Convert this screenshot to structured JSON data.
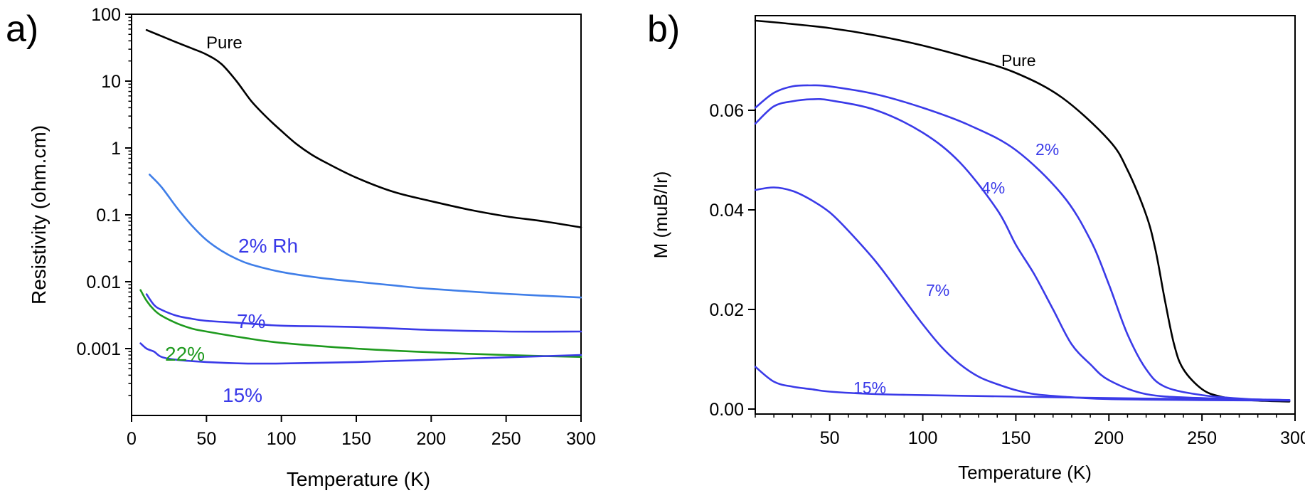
{
  "colors": {
    "black": "#000000",
    "blue": "#3a3ae8",
    "light_blue": "#3f7ee8",
    "green": "#1e9a1e"
  },
  "chart_data": [
    {
      "panel": "a)",
      "type": "line",
      "title": "",
      "xlabel": "Temperature (K)",
      "ylabel": "Resistivity (ohm.cm)",
      "xlim": [
        0,
        300
      ],
      "ylim": [
        0.0001,
        100
      ],
      "yscale": "log",
      "grid": false,
      "xticks": [
        0,
        50,
        100,
        150,
        200,
        250,
        300
      ],
      "xtick_labels": [
        "0",
        "50",
        "100",
        "150",
        "200",
        "250",
        "300"
      ],
      "yticks": [
        100,
        10,
        1,
        0.1,
        0.01,
        0.001
      ],
      "ytick_labels": [
        "100",
        "10",
        "1",
        "0.1",
        "0.01",
        "0.001"
      ],
      "series": [
        {
          "name": "Pure",
          "color": "#000000",
          "x": [
            10,
            20,
            30,
            40,
            50,
            60,
            70,
            80,
            90,
            100,
            110,
            120,
            130,
            150,
            175,
            200,
            225,
            250,
            275,
            300
          ],
          "y": [
            58,
            47,
            38,
            31,
            25,
            18,
            10,
            5,
            2.9,
            1.8,
            1.15,
            0.8,
            0.6,
            0.36,
            0.22,
            0.16,
            0.12,
            0.095,
            0.08,
            0.065
          ]
        },
        {
          "name": "2% Rh",
          "color": "#3f7ee8",
          "x": [
            12,
            20,
            30,
            40,
            50,
            60,
            70,
            80,
            100,
            125,
            150,
            175,
            200,
            250,
            300
          ],
          "y": [
            0.4,
            0.26,
            0.13,
            0.07,
            0.042,
            0.029,
            0.022,
            0.018,
            0.014,
            0.0115,
            0.01,
            0.0088,
            0.0078,
            0.0066,
            0.0058
          ]
        },
        {
          "name": "7%",
          "color": "#3a3ae8",
          "x": [
            10,
            15,
            20,
            30,
            40,
            50,
            75,
            100,
            150,
            200,
            250,
            300
          ],
          "y": [
            0.0065,
            0.0045,
            0.0038,
            0.0031,
            0.0028,
            0.0026,
            0.0024,
            0.0022,
            0.0021,
            0.0019,
            0.0018,
            0.0018
          ]
        },
        {
          "name": "22%",
          "color": "#1e9a1e",
          "x": [
            6,
            10,
            15,
            20,
            30,
            40,
            50,
            75,
            100,
            150,
            200,
            250,
            300
          ],
          "y": [
            0.0075,
            0.0052,
            0.0038,
            0.0031,
            0.0024,
            0.002,
            0.0018,
            0.00145,
            0.00122,
            0.001,
            0.00088,
            0.0008,
            0.00075
          ]
        },
        {
          "name": "15%",
          "color": "#3a3ae8",
          "x": [
            6,
            10,
            15,
            20,
            30,
            50,
            75,
            100,
            150,
            200,
            250,
            300
          ],
          "y": [
            0.0012,
            0.001,
            0.0009,
            0.00075,
            0.00068,
            0.00063,
            0.0006,
            0.0006,
            0.00063,
            0.00068,
            0.00074,
            0.0008
          ]
        }
      ],
      "annotations": [
        "Pure",
        "2% Rh",
        "7%",
        "22%",
        "15%"
      ]
    },
    {
      "panel": "b)",
      "type": "line",
      "title": "",
      "xlabel": "Temperature (K)",
      "ylabel": "M (muB/Ir)",
      "xlim": [
        10,
        300
      ],
      "ylim": [
        -0.001,
        0.079
      ],
      "yscale": "linear",
      "grid": false,
      "xticks": [
        50,
        100,
        150,
        200,
        250,
        300
      ],
      "xtick_labels": [
        "50",
        "100",
        "150",
        "200",
        "250",
        "300"
      ],
      "yticks": [
        0,
        0.02,
        0.04,
        0.06
      ],
      "ytick_labels": [
        "0.00",
        "0.02",
        "0.04",
        "0.06"
      ],
      "series": [
        {
          "name": "Pure",
          "color": "#000000",
          "x": [
            10,
            25,
            50,
            75,
            100,
            125,
            150,
            175,
            200,
            210,
            220,
            225,
            230,
            235,
            240,
            250,
            260,
            275,
            297
          ],
          "y": [
            0.078,
            0.0775,
            0.0765,
            0.075,
            0.073,
            0.0705,
            0.0675,
            0.0625,
            0.054,
            0.048,
            0.039,
            0.032,
            0.022,
            0.013,
            0.008,
            0.004,
            0.0025,
            0.0018,
            0.0015
          ]
        },
        {
          "name": "2%",
          "color": "#3a3ae8",
          "x": [
            10,
            20,
            30,
            40,
            50,
            75,
            100,
            125,
            150,
            175,
            190,
            200,
            210,
            220,
            230,
            250,
            275,
            297
          ],
          "y": [
            0.0605,
            0.0635,
            0.0648,
            0.065,
            0.0648,
            0.0632,
            0.0605,
            0.057,
            0.052,
            0.043,
            0.034,
            0.025,
            0.015,
            0.008,
            0.0045,
            0.0028,
            0.002,
            0.0018
          ]
        },
        {
          "name": "4%",
          "color": "#3a3ae8",
          "x": [
            10,
            20,
            30,
            40,
            50,
            75,
            100,
            120,
            140,
            150,
            160,
            170,
            180,
            190,
            200,
            220,
            250,
            297
          ],
          "y": [
            0.0573,
            0.0608,
            0.0618,
            0.0622,
            0.062,
            0.06,
            0.0555,
            0.0495,
            0.04,
            0.033,
            0.027,
            0.02,
            0.013,
            0.009,
            0.0058,
            0.003,
            0.0022,
            0.0018
          ]
        },
        {
          "name": "7%",
          "color": "#3a3ae8",
          "x": [
            10,
            20,
            30,
            40,
            50,
            60,
            75,
            90,
            100,
            110,
            120,
            130,
            140,
            150,
            160,
            175,
            200,
            250,
            297
          ],
          "y": [
            0.044,
            0.0445,
            0.0438,
            0.042,
            0.0395,
            0.0358,
            0.0295,
            0.022,
            0.017,
            0.0125,
            0.009,
            0.0065,
            0.005,
            0.0038,
            0.003,
            0.0025,
            0.002,
            0.0018,
            0.0017
          ]
        },
        {
          "name": "15%",
          "color": "#3a3ae8",
          "x": [
            10,
            20,
            30,
            40,
            50,
            75,
            100,
            150,
            200,
            250,
            297
          ],
          "y": [
            0.0085,
            0.0055,
            0.0045,
            0.004,
            0.0035,
            0.003,
            0.0028,
            0.0025,
            0.0022,
            0.002,
            0.0018
          ]
        }
      ],
      "annotations": [
        "Pure",
        "2%",
        "4%",
        "7%",
        "15%"
      ]
    }
  ]
}
